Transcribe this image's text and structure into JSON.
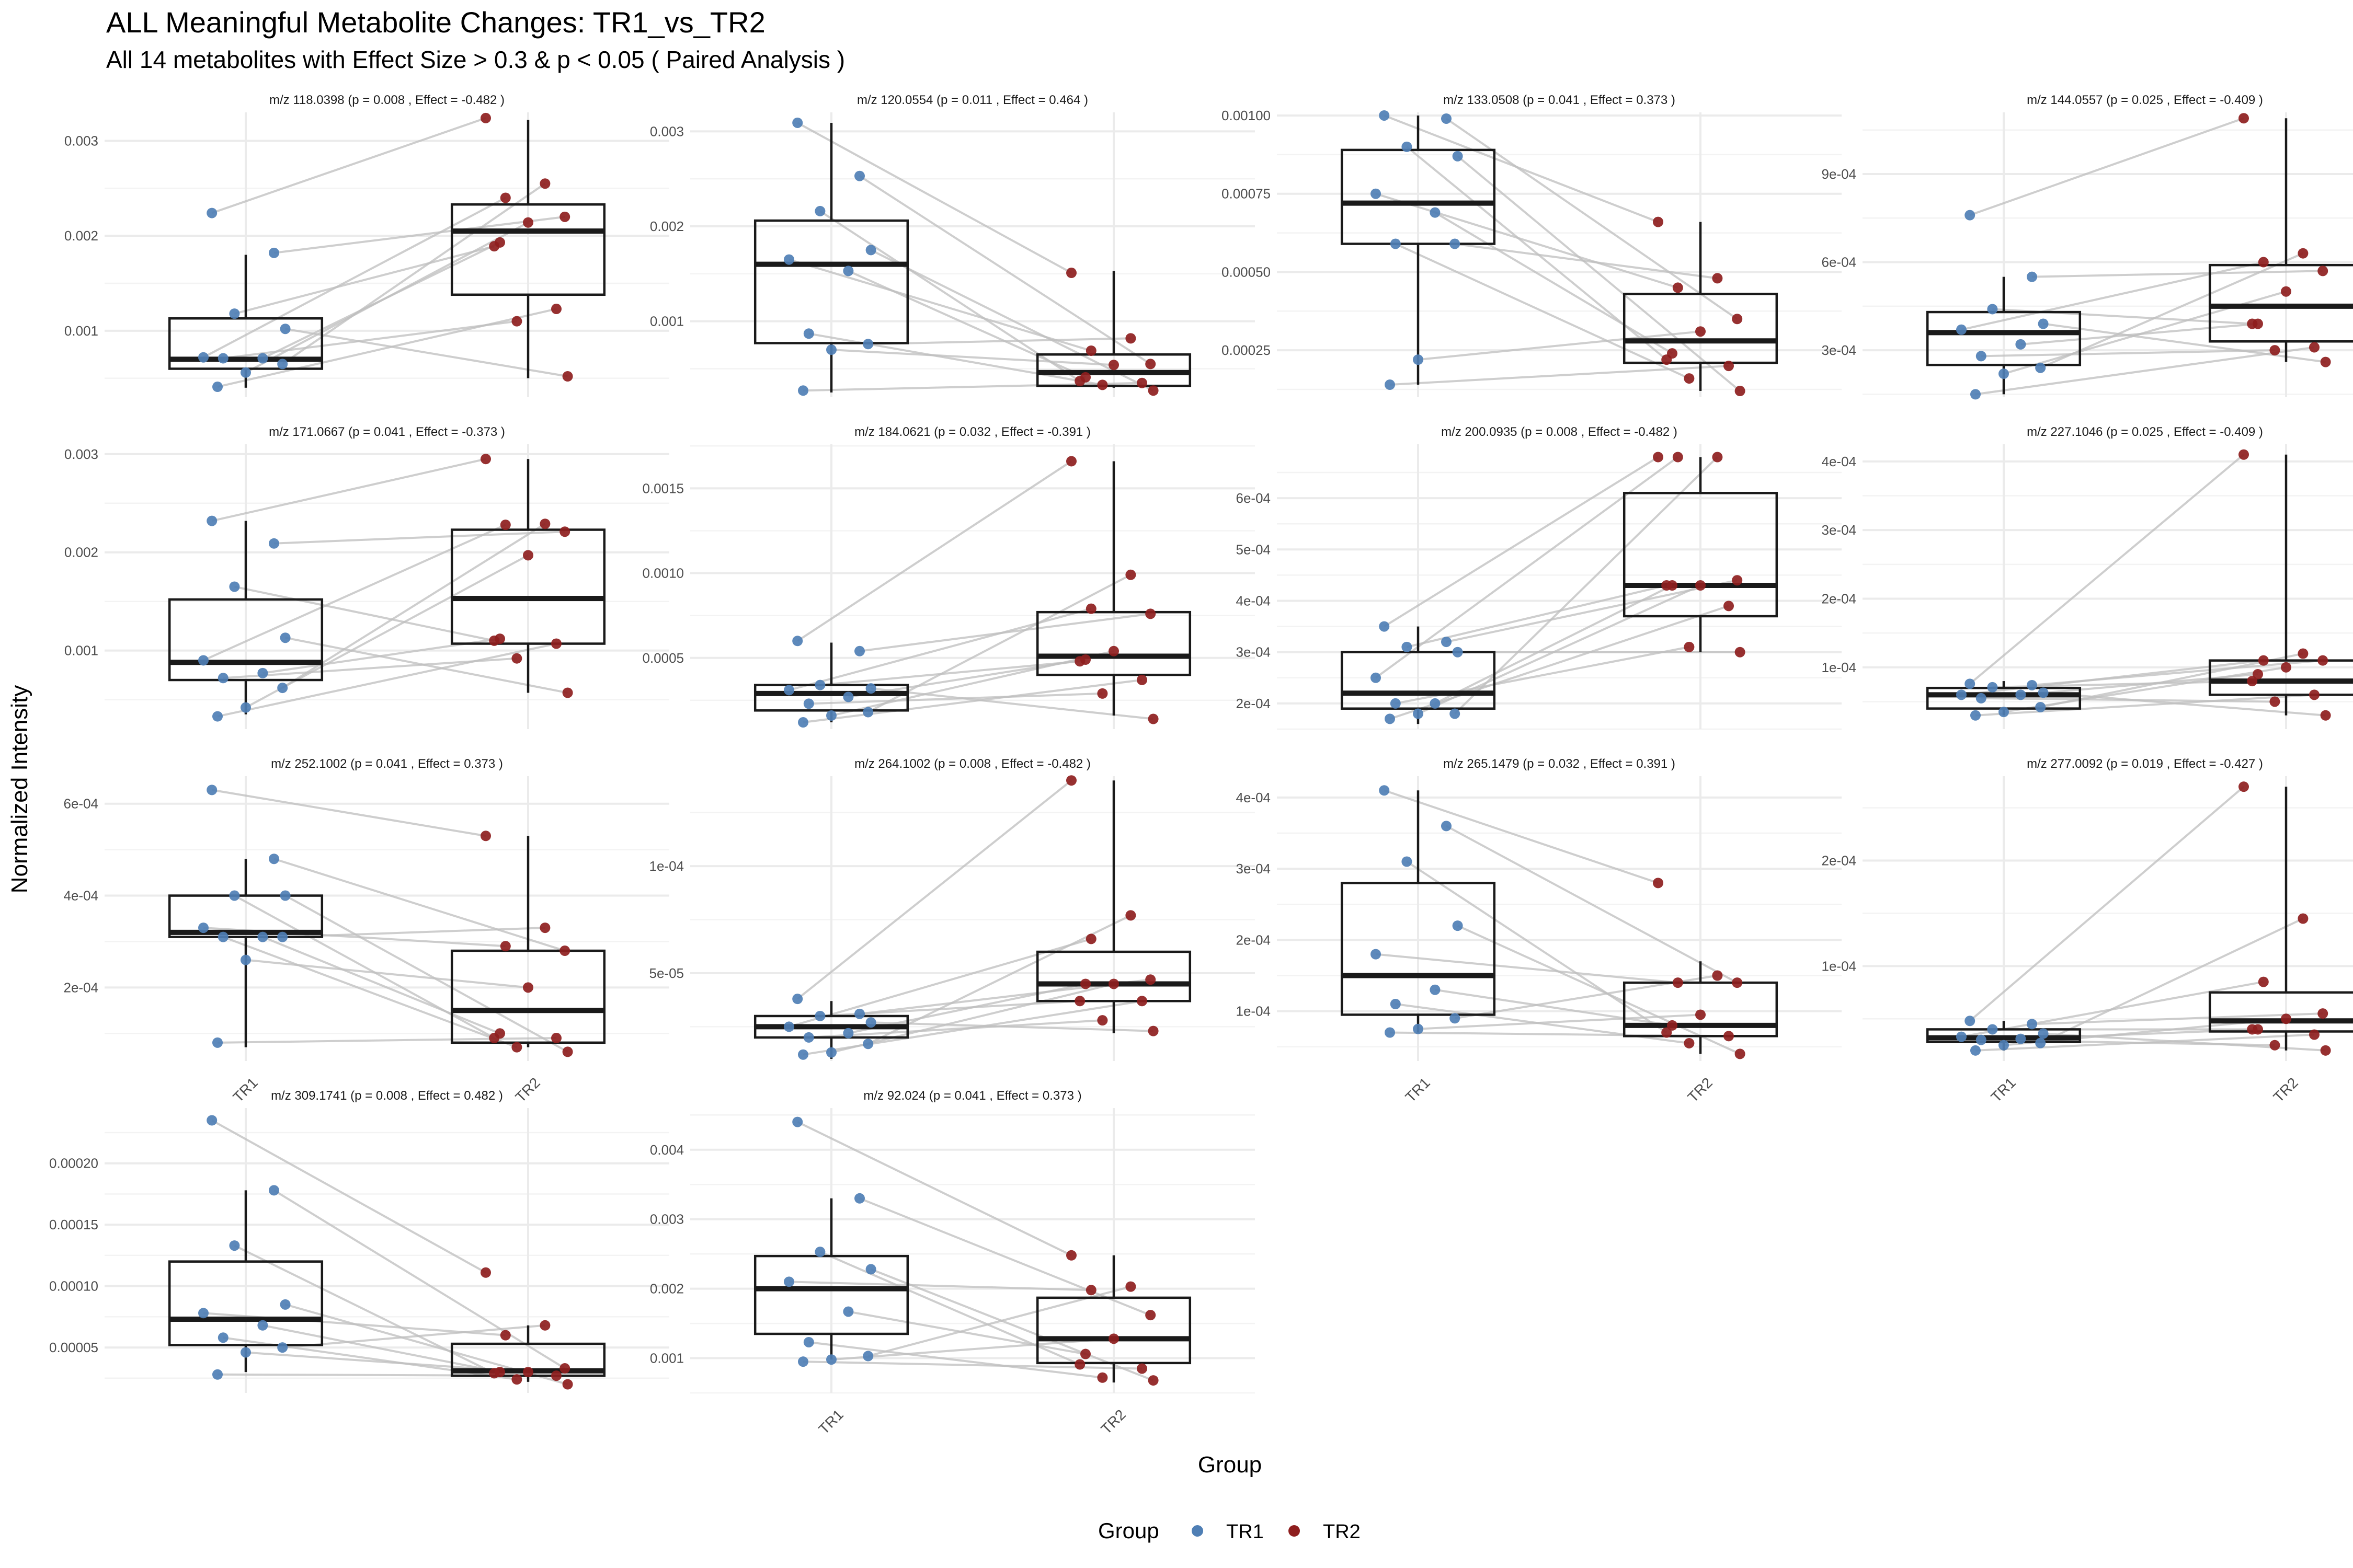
{
  "title": "ALL Meaningful Metabolite Changes: TR1_vs_TR2",
  "subtitle": "All 14 metabolites with Effect Size > 0.3 & p < 0.05 ( Paired Analysis )",
  "ylabel": "Normalized Intensity",
  "xlabel": "Group",
  "legend": {
    "title": "Group",
    "items": [
      {
        "label": "TR1",
        "color": "#4f7fb5"
      },
      {
        "label": "TR2",
        "color": "#8e1e1e"
      }
    ]
  },
  "chart_data": {
    "type": "box",
    "groups": [
      "TR1",
      "TR2"
    ],
    "colors": {
      "TR1": "#4f7fb5",
      "TR2": "#8e1e1e"
    },
    "panels": [
      {
        "title": "m/z 118.0398 (p = 0.008 , Effect = -0.482 )",
        "ylim": [
          0.0003,
          0.0033
        ],
        "ticks": [
          0.001,
          0.002,
          0.003
        ],
        "tick_labels": [
          "0.001",
          "0.002",
          "0.003"
        ],
        "boxes": {
          "TR1": {
            "min": 0.0004,
            "q1": 0.0006,
            "median": 0.0007,
            "q3": 0.00113,
            "max": 0.0018
          },
          "TR2": {
            "min": 0.0005,
            "q1": 0.00138,
            "median": 0.00205,
            "q3": 0.00233,
            "max": 0.00322
          }
        },
        "points": {
          "TR1": [
            0.00224,
            0.00182,
            0.00118,
            0.00102,
            0.00072,
            0.00071,
            0.00071,
            0.00065,
            0.00056,
            0.00041
          ],
          "TR2": [
            0.00324,
            0.00255,
            0.0024,
            0.0022,
            0.00214,
            0.00193,
            0.00189,
            0.00123,
            0.0011,
            0.00052
          ]
        }
      },
      {
        "title": "m/z 120.0554 (p = 0.011 , Effect = 0.464 )",
        "ylim": [
          0.0002,
          0.0032
        ],
        "ticks": [
          0.001,
          0.002,
          0.003
        ],
        "tick_labels": [
          "0.001",
          "0.002",
          "0.003"
        ],
        "boxes": {
          "TR1": {
            "min": 0.00025,
            "q1": 0.00077,
            "median": 0.0016,
            "q3": 0.00206,
            "max": 0.00309
          },
          "TR2": {
            "min": 0.0003,
            "q1": 0.00032,
            "median": 0.00046,
            "q3": 0.00065,
            "max": 0.00153
          }
        },
        "points": {
          "TR1": [
            0.00309,
            0.00253,
            0.00216,
            0.00175,
            0.00165,
            0.00153,
            0.00087,
            0.00076,
            0.0007,
            0.00027
          ],
          "TR2": [
            0.00151,
            0.00082,
            0.00069,
            0.00055,
            0.00054,
            0.00041,
            0.00037,
            0.00035,
            0.00033,
            0.00027
          ]
        }
      },
      {
        "title": "m/z 133.0508 (p = 0.041 , Effect = 0.373 )",
        "ylim": [
          0.0001,
          0.00101
        ],
        "ticks": [
          0.00025,
          0.0005,
          0.00075,
          0.001
        ],
        "tick_labels": [
          "0.00025",
          "0.00050",
          "0.00075",
          "0.00100"
        ],
        "boxes": {
          "TR1": {
            "min": 0.00014,
            "q1": 0.00059,
            "median": 0.00072,
            "q3": 0.00089,
            "max": 0.001
          },
          "TR2": {
            "min": 0.00012,
            "q1": 0.00021,
            "median": 0.00028,
            "q3": 0.00043,
            "max": 0.00066
          }
        },
        "points": {
          "TR1": [
            0.001,
            0.00099,
            0.0009,
            0.00087,
            0.00075,
            0.00069,
            0.00059,
            0.00059,
            0.00022,
            0.00014
          ],
          "TR2": [
            0.00066,
            0.00048,
            0.00045,
            0.00035,
            0.00031,
            0.00024,
            0.00022,
            0.0002,
            0.00016,
            0.00012
          ]
        }
      },
      {
        "title": "m/z 144.0557 (p = 0.025 , Effect = -0.409 )",
        "ylim": [
          0.00014,
          0.00111
        ],
        "ticks": [
          0.0003,
          0.0006,
          0.0009
        ],
        "tick_labels": [
          "3e-04",
          "6e-04",
          "9e-04"
        ],
        "boxes": {
          "TR1": {
            "min": 0.00015,
            "q1": 0.00025,
            "median": 0.00036,
            "q3": 0.00043,
            "max": 0.00055
          },
          "TR2": {
            "min": 0.00026,
            "q1": 0.00033,
            "median": 0.00045,
            "q3": 0.00059,
            "max": 0.00109
          }
        },
        "points": {
          "TR1": [
            0.00076,
            0.00055,
            0.00044,
            0.00039,
            0.00037,
            0.00032,
            0.00028,
            0.00024,
            0.00022,
            0.00015
          ],
          "TR2": [
            0.00109,
            0.00063,
            0.0006,
            0.00057,
            0.0005,
            0.00039,
            0.00039,
            0.00031,
            0.0003,
            0.00026
          ]
        }
      },
      {
        "title": "m/z 171.0667 (p = 0.041 , Effect = -0.373 )",
        "ylim": [
          0.0002,
          0.0031
        ],
        "ticks": [
          0.001,
          0.002,
          0.003
        ],
        "tick_labels": [
          "0.001",
          "0.002",
          "0.003"
        ],
        "boxes": {
          "TR1": {
            "min": 0.00035,
            "q1": 0.0007,
            "median": 0.00088,
            "q3": 0.00152,
            "max": 0.00232
          },
          "TR2": {
            "min": 0.00057,
            "q1": 0.00107,
            "median": 0.00153,
            "q3": 0.00223,
            "max": 0.00295
          }
        },
        "points": {
          "TR1": [
            0.00232,
            0.00209,
            0.00165,
            0.00113,
            0.0009,
            0.00077,
            0.00072,
            0.00062,
            0.00042,
            0.00033
          ],
          "TR2": [
            0.00295,
            0.00229,
            0.00228,
            0.00221,
            0.00197,
            0.00112,
            0.0011,
            0.00107,
            0.00092,
            0.00057
          ]
        }
      },
      {
        "title": "m/z 184.0621 (p = 0.032 , Effect = -0.391 )",
        "ylim": [
          8e-05,
          0.00176
        ],
        "ticks": [
          0.0005,
          0.001,
          0.0015
        ],
        "tick_labels": [
          "0.0005",
          "0.0010",
          "0.0015"
        ],
        "boxes": {
          "TR1": {
            "min": 0.00012,
            "q1": 0.00019,
            "median": 0.00029,
            "q3": 0.00034,
            "max": 0.00059
          },
          "TR2": {
            "min": 0.00016,
            "q1": 0.0004,
            "median": 0.00051,
            "q3": 0.00077,
            "max": 0.00166
          }
        },
        "points": {
          "TR1": [
            0.0006,
            0.00054,
            0.00034,
            0.00032,
            0.00031,
            0.00027,
            0.00023,
            0.00018,
            0.00016,
            0.00012
          ],
          "TR2": [
            0.00166,
            0.00099,
            0.00079,
            0.00076,
            0.00054,
            0.00049,
            0.00048,
            0.00037,
            0.00029,
            0.00014
          ]
        }
      },
      {
        "title": "m/z 200.0935 (p = 0.008 , Effect = -0.482 )",
        "ylim": [
          0.00015,
          0.000705
        ],
        "ticks": [
          0.0002,
          0.0003,
          0.0004,
          0.0005,
          0.0006
        ],
        "tick_labels": [
          "2e-04",
          "3e-04",
          "4e-04",
          "5e-04",
          "6e-04"
        ],
        "boxes": {
          "TR1": {
            "min": 0.00016,
            "q1": 0.00019,
            "median": 0.00022,
            "q3": 0.0003,
            "max": 0.00035
          },
          "TR2": {
            "min": 0.0003,
            "q1": 0.00037,
            "median": 0.00043,
            "q3": 0.00061,
            "max": 0.00068
          }
        },
        "points": {
          "TR1": [
            0.00035,
            0.00032,
            0.00031,
            0.0003,
            0.00025,
            0.0002,
            0.0002,
            0.00018,
            0.00018,
            0.00017
          ],
          "TR2": [
            0.00068,
            0.00068,
            0.00068,
            0.00044,
            0.00043,
            0.00043,
            0.00043,
            0.00039,
            0.00031,
            0.0003
          ]
        }
      },
      {
        "title": "m/z 227.1046 (p = 0.025 , Effect = -0.409 )",
        "ylim": [
          1e-05,
          0.000425
        ],
        "ticks": [
          0.0001,
          0.0002,
          0.0003,
          0.0004
        ],
        "tick_labels": [
          "1e-04",
          "2e-04",
          "3e-04",
          "4e-04"
        ],
        "boxes": {
          "TR1": {
            "min": 3e-05,
            "q1": 4e-05,
            "median": 6e-05,
            "q3": 7e-05,
            "max": 8e-05
          },
          "TR2": {
            "min": 3e-05,
            "q1": 6e-05,
            "median": 8e-05,
            "q3": 0.00011,
            "max": 0.00041
          }
        },
        "points": {
          "TR1": [
            7.6e-05,
            7.4e-05,
            7.1e-05,
            6.3e-05,
            6e-05,
            6e-05,
            5.5e-05,
            4.2e-05,
            3.5e-05,
            3e-05
          ],
          "TR2": [
            0.00041,
            0.00012,
            0.00011,
            0.00011,
            0.0001,
            9e-05,
            8e-05,
            6e-05,
            5e-05,
            3e-05
          ]
        }
      },
      {
        "title": "m/z 252.1002 (p = 0.041 , Effect = 0.373 )",
        "ylim": [
          4e-05,
          0.00066
        ],
        "ticks": [
          0.0002,
          0.0004,
          0.0006
        ],
        "tick_labels": [
          "2e-04",
          "4e-04",
          "6e-04"
        ],
        "boxes": {
          "TR1": {
            "min": 7e-05,
            "q1": 0.00031,
            "median": 0.00032,
            "q3": 0.0004,
            "max": 0.00048
          },
          "TR2": {
            "min": 7e-05,
            "q1": 8e-05,
            "median": 0.00015,
            "q3": 0.00028,
            "max": 0.00053
          }
        },
        "points": {
          "TR1": [
            0.00063,
            0.00048,
            0.0004,
            0.0004,
            0.00033,
            0.00031,
            0.00031,
            0.00031,
            0.00026,
            8e-05
          ],
          "TR2": [
            0.00053,
            0.00033,
            0.00029,
            0.00028,
            0.0002,
            0.0001,
            9e-05,
            9e-05,
            7e-05,
            6e-05
          ]
        }
      },
      {
        "title": "m/z 264.1002 (p = 0.008 , Effect = -0.482 )",
        "ylim": [
          9e-06,
          0.000142
        ],
        "ticks": [
          5e-05,
          0.0001
        ],
        "tick_labels": [
          "5e-05",
          "1e-04"
        ],
        "boxes": {
          "TR1": {
            "min": 1e-05,
            "q1": 2e-05,
            "median": 2.5e-05,
            "q3": 3e-05,
            "max": 3.7e-05
          },
          "TR2": {
            "min": 2.2e-05,
            "q1": 3.7e-05,
            "median": 4.5e-05,
            "q3": 6e-05,
            "max": 0.00014
          }
        },
        "points": {
          "TR1": [
            3.8e-05,
            3.1e-05,
            3e-05,
            2.7e-05,
            2.5e-05,
            2.2e-05,
            2e-05,
            1.7e-05,
            1.3e-05,
            1.2e-05
          ],
          "TR2": [
            0.00014,
            7.7e-05,
            6.6e-05,
            4.7e-05,
            4.5e-05,
            4.5e-05,
            3.7e-05,
            3.7e-05,
            2.8e-05,
            2.3e-05
          ]
        }
      },
      {
        "title": "m/z 265.1479 (p = 0.032 , Effect = 0.391 )",
        "ylim": [
          3e-05,
          0.00043
        ],
        "ticks": [
          0.0001,
          0.0002,
          0.0003,
          0.0004
        ],
        "tick_labels": [
          "1e-04",
          "2e-04",
          "3e-04",
          "4e-04"
        ],
        "boxes": {
          "TR1": {
            "min": 7e-05,
            "q1": 9.5e-05,
            "median": 0.00015,
            "q3": 0.00028,
            "max": 0.00041
          },
          "TR2": {
            "min": 4e-05,
            "q1": 6.5e-05,
            "median": 8e-05,
            "q3": 0.00014,
            "max": 0.00017
          }
        },
        "points": {
          "TR1": [
            0.00041,
            0.00036,
            0.00031,
            0.00022,
            0.00018,
            0.00013,
            0.00011,
            9e-05,
            7.5e-05,
            7e-05
          ],
          "TR2": [
            0.00028,
            0.00015,
            0.00014,
            0.00014,
            9.5e-05,
            8e-05,
            7e-05,
            6.5e-05,
            5.5e-05,
            4e-05
          ]
        }
      },
      {
        "title": "m/z 277.0092 (p = 0.019 , Effect = -0.427 )",
        "ylim": [
          1e-05,
          0.00028
        ],
        "ticks": [
          0.0001,
          0.0002
        ],
        "tick_labels": [
          "1e-04",
          "2e-04"
        ],
        "boxes": {
          "TR1": {
            "min": 2e-05,
            "q1": 2.8e-05,
            "median": 3.2e-05,
            "q3": 4e-05,
            "max": 4.8e-05
          },
          "TR2": {
            "min": 2e-05,
            "q1": 3.8e-05,
            "median": 4.8e-05,
            "q3": 7.5e-05,
            "max": 0.00027
          }
        },
        "points": {
          "TR1": [
            4.8e-05,
            4.5e-05,
            4e-05,
            3.6e-05,
            3.3e-05,
            3.1e-05,
            3e-05,
            2.7e-05,
            2.5e-05,
            2e-05
          ],
          "TR2": [
            0.00027,
            0.000145,
            8.5e-05,
            5.5e-05,
            5e-05,
            4e-05,
            4e-05,
            3.5e-05,
            2.5e-05,
            2e-05
          ]
        }
      },
      {
        "title": "m/z 309.1741 (p = 0.008 , Effect = 0.482 )",
        "ylim": [
          1.3e-05,
          0.000245
        ],
        "ticks": [
          5e-05,
          0.0001,
          0.00015,
          0.0002
        ],
        "tick_labels": [
          "0.00005",
          "0.00010",
          "0.00015",
          "0.00020"
        ],
        "boxes": {
          "TR1": {
            "min": 3e-05,
            "q1": 5.2e-05,
            "median": 7.3e-05,
            "q3": 0.00012,
            "max": 0.000178
          },
          "TR2": {
            "min": 2.2e-05,
            "q1": 2.7e-05,
            "median": 3.1e-05,
            "q3": 5.3e-05,
            "max": 6.8e-05
          }
        },
        "points": {
          "TR1": [
            0.000235,
            0.000178,
            0.000133,
            8.5e-05,
            7.8e-05,
            6.8e-05,
            5.8e-05,
            5e-05,
            4.6e-05,
            2.8e-05
          ],
          "TR2": [
            0.000111,
            6.8e-05,
            6e-05,
            3.3e-05,
            3e-05,
            3e-05,
            2.9e-05,
            2.7e-05,
            2.4e-05,
            2e-05
          ]
        }
      },
      {
        "title": "m/z 92.024 (p = 0.041 , Effect = 0.373 )",
        "ylim": [
          0.0005,
          0.0046
        ],
        "ticks": [
          0.001,
          0.002,
          0.003,
          0.004
        ],
        "tick_labels": [
          "0.001",
          "0.002",
          "0.003",
          "0.004"
        ],
        "boxes": {
          "TR1": {
            "min": 0.00098,
            "q1": 0.00135,
            "median": 0.002,
            "q3": 0.00247,
            "max": 0.0033
          },
          "TR2": {
            "min": 0.00065,
            "q1": 0.00093,
            "median": 0.00128,
            "q3": 0.00187,
            "max": 0.00248
          }
        },
        "points": {
          "TR1": [
            0.0044,
            0.0033,
            0.00253,
            0.00228,
            0.0021,
            0.00167,
            0.00123,
            0.00103,
            0.00098,
            0.00095
          ],
          "TR2": [
            0.00248,
            0.00203,
            0.00198,
            0.00162,
            0.00128,
            0.00106,
            0.00091,
            0.00085,
            0.00072,
            0.00068
          ]
        }
      }
    ]
  }
}
